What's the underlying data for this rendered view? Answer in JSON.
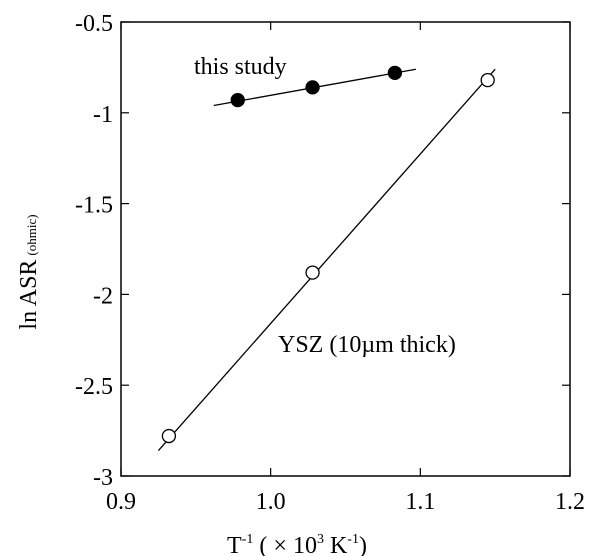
{
  "chart_data": {
    "type": "scatter",
    "title": "",
    "xlabel": {
      "base": "T",
      "exp": "-1",
      "open": " ( ",
      "times": "×",
      "mid": " 10",
      "exp2": "3",
      "unit": " K",
      "exp3": "-1",
      "close": ")"
    },
    "ylabel": {
      "main": "ln ASR",
      "sub": "(ohmic)"
    },
    "xlim": [
      0.9,
      1.2
    ],
    "ylim": [
      -3,
      -0.5
    ],
    "xticks": [
      {
        "value": 0.9,
        "label": "0.9"
      },
      {
        "value": 1.0,
        "label": "1.0"
      },
      {
        "value": 1.1,
        "label": "1.1"
      },
      {
        "value": 1.2,
        "label": "1.2"
      }
    ],
    "yticks": [
      {
        "value": -0.5,
        "label": "-0.5"
      },
      {
        "value": -1,
        "label": "-1"
      },
      {
        "value": -1.5,
        "label": "-1.5"
      },
      {
        "value": -2,
        "label": "-2"
      },
      {
        "value": -2.5,
        "label": "-2.5"
      },
      {
        "value": -3,
        "label": "-3"
      }
    ],
    "grid": false,
    "legend": "none",
    "series": [
      {
        "label": "this study",
        "marker": "filled-circle",
        "color": "#000000",
        "x": [
          0.978,
          1.028,
          1.083
        ],
        "y": [
          -0.93,
          -0.86,
          -0.78
        ],
        "fit": {
          "x": [
            0.962,
            1.097
          ],
          "y": [
            -0.96,
            -0.76
          ]
        }
      },
      {
        "label": "YSZ (10µm thick)",
        "marker": "open-circle",
        "color": "#000000",
        "x": [
          0.932,
          1.028,
          1.145
        ],
        "y": [
          -2.78,
          -1.88,
          -0.82
        ],
        "fit": {
          "x": [
            0.925,
            1.15
          ],
          "y": [
            -2.86,
            -0.76
          ]
        }
      }
    ]
  }
}
